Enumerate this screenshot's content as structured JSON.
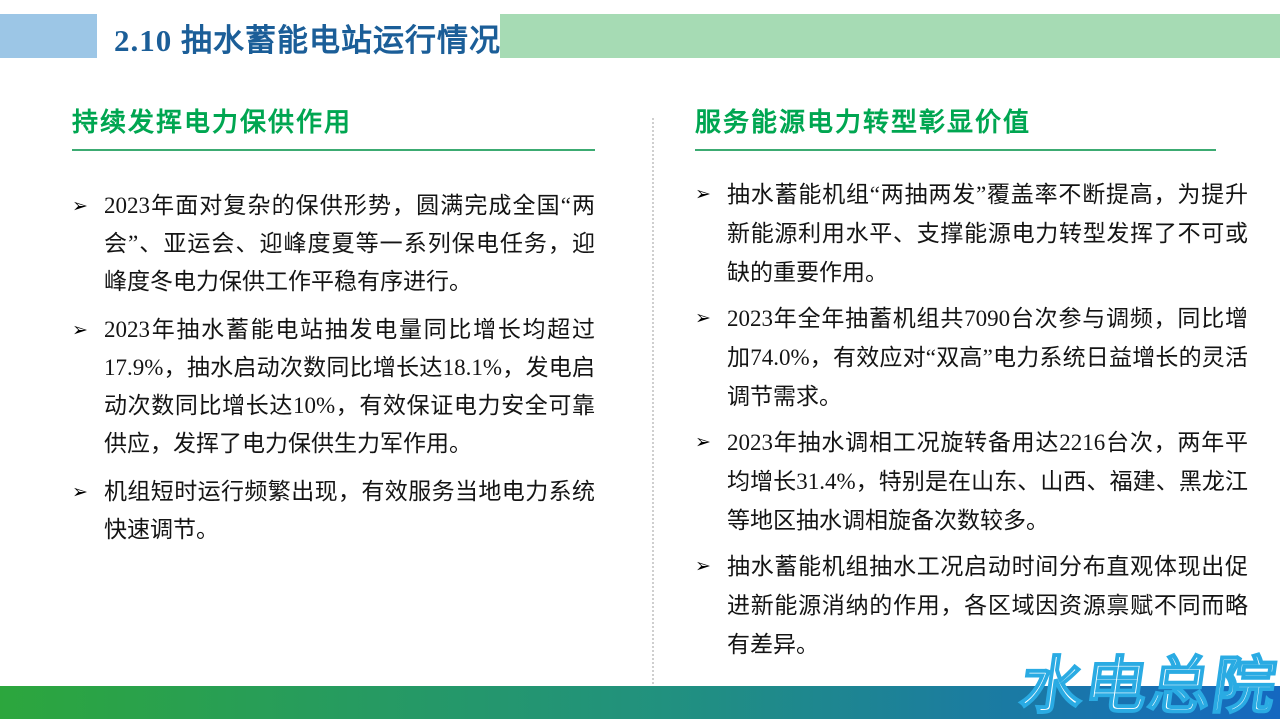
{
  "header": {
    "title": "2.10 抽水蓄能电站运行情况"
  },
  "columns": [
    {
      "heading": "持续发挥电力保供作用",
      "bullets": [
        "2023年面对复杂的保供形势，圆满完成全国“两会”、亚运会、迎峰度夏等一系列保电任务，迎峰度冬电力保供工作平稳有序进行。",
        "2023年抽水蓄能电站抽发电量同比增长均超过17.9%，抽水启动次数同比增长达18.1%，发电启动次数同比增长达10%，有效保证电力安全可靠供应，发挥了电力保供生力军作用。",
        "机组短时运行频繁出现，有效服务当地电力系统快速调节。"
      ]
    },
    {
      "heading": "服务能源电力转型彰显价值",
      "bullets": [
        "抽水蓄能机组“两抽两发”覆盖率不断提高，为提升新能源利用水平、支撑能源电力转型发挥了不可或缺的重要作用。",
        "2023年全年抽蓄机组共7090台次参与调频，同比增加74.0%，有效应对“双高”电力系统日益增长的灵活调节需求。",
        "2023年抽水调相工况旋转备用达2216台次，两年平均增长31.4%，特别是在山东、山西、福建、黑龙江等地区抽水调相旋备次数较多。",
        "抽水蓄能机组抽水工况启动时间分布直观体现出促进新能源消纳的作用，各区域因资源禀赋不同而略有差异。"
      ]
    }
  ],
  "bullet_marker": "➢",
  "watermark": "水电总院",
  "colors": {
    "title_blue": "#1b5e98",
    "heading_green": "#00a651",
    "underline_green": "#3cab72",
    "header_accent_blue": "#9cc6e6",
    "header_accent_green": "#a6dbb4",
    "footer_gradient_left": "#2ca63d",
    "footer_gradient_mid": "#21917f",
    "footer_gradient_right": "#1568c0",
    "watermark_outline": "#2aabe3"
  }
}
